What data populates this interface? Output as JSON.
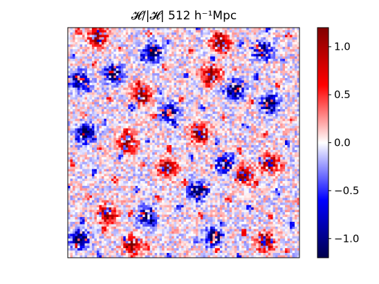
{
  "chart_data": {
    "type": "heatmap",
    "title": "𝓗/|𝓗| 512 h⁻¹Mpc",
    "xlabel": "",
    "ylabel": "",
    "x_ticks_visible": false,
    "y_ticks_visible": false,
    "colormap": "seismic",
    "colormap_stops": [
      "#00004c",
      "#0000ff",
      "#ffffff",
      "#ff0000",
      "#800000"
    ],
    "color_range": [
      -1.2,
      1.2
    ],
    "colorbar": {
      "ticks": [
        1.0,
        0.5,
        0.0,
        -0.5,
        -1.0
      ],
      "tick_labels": [
        "1.0",
        "0.5",
        "0.0",
        "−0.5",
        "−1.0"
      ]
    },
    "grid_size": [
      96,
      96
    ],
    "description_of_field": "noisy field of values mostly near 0 with clustered blobs of +1 and -1 values along filament-like structures",
    "clusters": [
      {
        "cx": 0.13,
        "cy": 0.04,
        "sign": 1
      },
      {
        "cx": 0.37,
        "cy": 0.11,
        "sign": -1
      },
      {
        "cx": 0.66,
        "cy": 0.07,
        "sign": 1
      },
      {
        "cx": 0.84,
        "cy": 0.1,
        "sign": -1
      },
      {
        "cx": 0.05,
        "cy": 0.23,
        "sign": -1
      },
      {
        "cx": 0.2,
        "cy": 0.2,
        "sign": -1
      },
      {
        "cx": 0.32,
        "cy": 0.29,
        "sign": 1
      },
      {
        "cx": 0.44,
        "cy": 0.37,
        "sign": -1
      },
      {
        "cx": 0.62,
        "cy": 0.2,
        "sign": 1
      },
      {
        "cx": 0.87,
        "cy": 0.33,
        "sign": -1
      },
      {
        "cx": 0.57,
        "cy": 0.46,
        "sign": 1
      },
      {
        "cx": 0.08,
        "cy": 0.46,
        "sign": -1
      },
      {
        "cx": 0.43,
        "cy": 0.61,
        "sign": 1
      },
      {
        "cx": 0.68,
        "cy": 0.59,
        "sign": -1
      },
      {
        "cx": 0.87,
        "cy": 0.59,
        "sign": 1
      },
      {
        "cx": 0.17,
        "cy": 0.81,
        "sign": 1
      },
      {
        "cx": 0.34,
        "cy": 0.82,
        "sign": -1
      },
      {
        "cx": 0.56,
        "cy": 0.71,
        "sign": -1
      },
      {
        "cx": 0.76,
        "cy": 0.64,
        "sign": 1
      },
      {
        "cx": 0.05,
        "cy": 0.92,
        "sign": -1
      },
      {
        "cx": 0.28,
        "cy": 0.95,
        "sign": 1
      },
      {
        "cx": 0.63,
        "cy": 0.91,
        "sign": -1
      },
      {
        "cx": 0.85,
        "cy": 0.93,
        "sign": 1
      },
      {
        "cx": 0.72,
        "cy": 0.27,
        "sign": -1
      },
      {
        "cx": 0.26,
        "cy": 0.5,
        "sign": 1
      }
    ]
  }
}
